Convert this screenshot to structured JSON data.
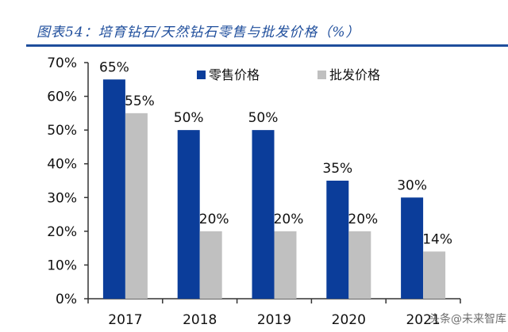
{
  "header": {
    "title": "图表54：培育钻石/天然钻石零售与批发价格（%）"
  },
  "watermark": "头条@未来智库",
  "chart_data": {
    "type": "bar",
    "title": "图表54：培育钻石/天然钻石零售与批发价格（%）",
    "xlabel": "",
    "ylabel": "",
    "categories": [
      "2017",
      "2018",
      "2019",
      "2020",
      "2021"
    ],
    "series": [
      {
        "name": "零售价格",
        "values": [
          65,
          50,
          50,
          35,
          30
        ],
        "labels": [
          "65%",
          "50%",
          "50%",
          "35%",
          "30%"
        ],
        "color": "#0b3d9a"
      },
      {
        "name": "批发价格",
        "values": [
          55,
          20,
          20,
          20,
          14
        ],
        "labels": [
          "55%",
          "20%",
          "20%",
          "20%",
          "14%"
        ],
        "color": "#c0c0c0"
      }
    ],
    "ylim": [
      0,
      70
    ],
    "yticks": [
      0,
      10,
      20,
      30,
      40,
      50,
      60,
      70
    ],
    "ytick_labels": [
      "0%",
      "10%",
      "20%",
      "30%",
      "40%",
      "50%",
      "60%",
      "70%"
    ],
    "grid": false,
    "legend_position": "top-right"
  }
}
